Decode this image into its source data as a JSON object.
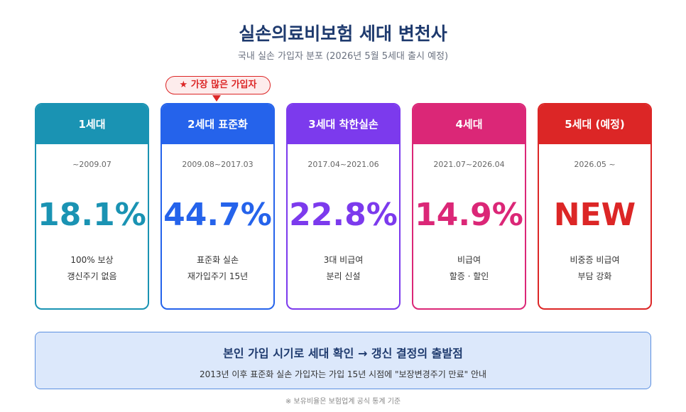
{
  "header": {
    "title": "실손의료비보험 세대 변천사",
    "subtitle": "국내 실손 가입자 분포 (2026년 5월 5세대 출시 예정)"
  },
  "badge": "★ 가장 많은 가입자",
  "cards": [
    {
      "name": "1세대",
      "period": "~2009.07",
      "value": "18.1%",
      "desc": [
        "100% 보상",
        "갱신주기 없음"
      ]
    },
    {
      "name": "2세대 표준화",
      "period": "2009.08~2017.03",
      "value": "44.7%",
      "desc": [
        "표준화 실손",
        "재가입주기 15년"
      ]
    },
    {
      "name": "3세대 착한실손",
      "period": "2017.04~2021.06",
      "value": "22.8%",
      "desc": [
        "3대 비급여",
        "분리 신설"
      ]
    },
    {
      "name": "4세대",
      "period": "2021.07~2026.04",
      "value": "14.9%",
      "desc": [
        "비급여",
        "할증 · 할인"
      ]
    },
    {
      "name": "5세대 (예정)",
      "period": "2026.05 ~",
      "value": "NEW",
      "desc": [
        "비중증 비급여",
        "부담 강화"
      ]
    }
  ],
  "notice": {
    "title": "본인 가입 시기로 세대 확인 → 갱신 결정의 출발점",
    "text": "2013년 이후 표준화 실손 가입자는 가입 15년 시점에 \"보장변경주기 만료\" 안내"
  },
  "footnote": "※ 보유비율은 보험업계 공식 통계 기준"
}
